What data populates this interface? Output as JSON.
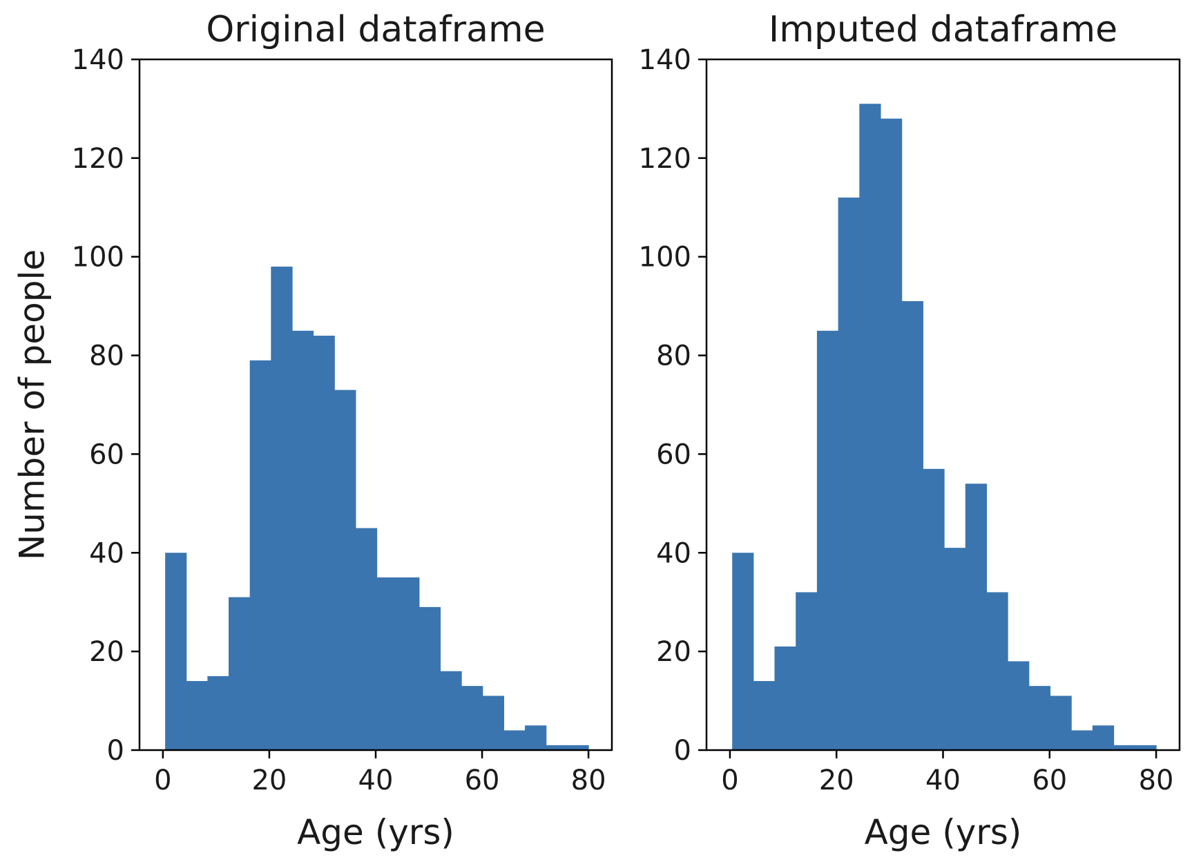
{
  "chart_data": [
    {
      "type": "bar",
      "title": "Original dataframe",
      "xlabel": "Age (yrs)",
      "ylabel": "Number of people",
      "xlim": [
        -4.4,
        84.4
      ],
      "ylim": [
        0,
        140
      ],
      "xticks": [
        0,
        20,
        40,
        60,
        80
      ],
      "yticks": [
        0,
        20,
        40,
        60,
        80,
        100,
        120,
        140
      ],
      "bin_edges": [
        0.42,
        4.39,
        8.37,
        12.35,
        16.33,
        20.31,
        24.29,
        28.26,
        32.24,
        36.22,
        40.2,
        44.18,
        48.16,
        52.13,
        56.11,
        60.09,
        64.07,
        68.05,
        72.03,
        76.0,
        80.0
      ],
      "values": [
        40,
        14,
        15,
        31,
        79,
        98,
        85,
        84,
        73,
        45,
        35,
        35,
        29,
        16,
        13,
        11,
        4,
        5,
        1,
        1
      ],
      "color": "#3b75af",
      "grid": false
    },
    {
      "type": "bar",
      "title": "Imputed dataframe",
      "xlabel": "Age (yrs)",
      "ylabel": "",
      "xlim": [
        -4.4,
        84.4
      ],
      "ylim": [
        0,
        140
      ],
      "xticks": [
        0,
        20,
        40,
        60,
        80
      ],
      "yticks": [
        0,
        20,
        40,
        60,
        80,
        100,
        120,
        140
      ],
      "bin_edges": [
        0.42,
        4.39,
        8.37,
        12.35,
        16.33,
        20.31,
        24.29,
        28.26,
        32.24,
        36.22,
        40.2,
        44.18,
        48.16,
        52.13,
        56.11,
        60.09,
        64.07,
        68.05,
        72.03,
        76.0,
        80.0
      ],
      "values": [
        40,
        14,
        21,
        32,
        85,
        112,
        131,
        128,
        91,
        57,
        41,
        54,
        32,
        18,
        13,
        11,
        4,
        5,
        1,
        1
      ],
      "color": "#3b75af",
      "grid": false
    }
  ]
}
